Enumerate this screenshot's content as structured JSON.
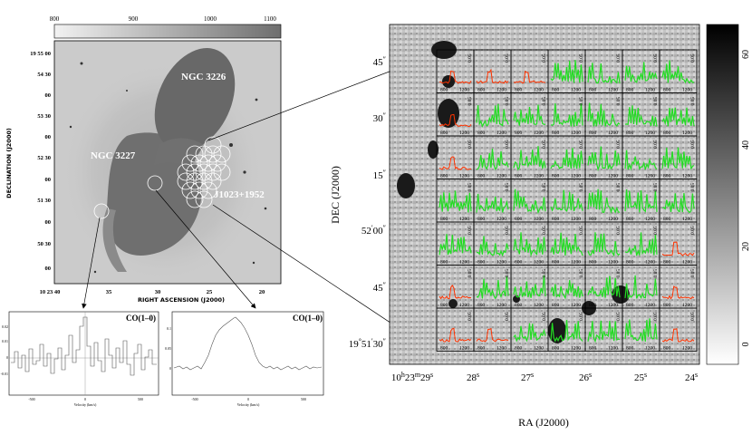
{
  "left_panel": {
    "colorbar": {
      "ticks": [
        "800",
        "900",
        "1000",
        "1100"
      ]
    },
    "galaxy_labels": {
      "ngc3226": "NGC 3226",
      "ngc3227": "NGC 3227",
      "j1023": "J1023+1952"
    },
    "dec_ticks": [
      "19 55 00",
      "54 30",
      "00",
      "53 30",
      "00",
      "52 30",
      "00",
      "51 30",
      "00",
      "50 30",
      "00"
    ],
    "ra_ticks": [
      "10 23 40",
      "35",
      "30",
      "25",
      "20"
    ],
    "xlabel": "RIGHT ASCENSION (J2000)",
    "ylabel": "DECLINATION (J2000)"
  },
  "spectra": {
    "left": {
      "title": "CO(1–0)",
      "y_ticks": [
        "0.02",
        "0.01",
        "0",
        "-0.01"
      ],
      "x_ticks": [
        "-500",
        "0",
        "500"
      ],
      "xlabel": "Velocity (km/s)"
    },
    "right": {
      "title": "CO(1–0)",
      "y_ticks": [
        "0.1",
        "0.05",
        "0"
      ],
      "x_ticks": [
        "-500",
        "0",
        "500"
      ],
      "xlabel": "Velocity (km/s)"
    }
  },
  "right_panel": {
    "dec_ticks": [
      {
        "deg": "",
        "min": "",
        "sec": "45",
        "unit": "″"
      },
      {
        "deg": "",
        "min": "",
        "sec": "30",
        "unit": "″"
      },
      {
        "deg": "",
        "min": "",
        "sec": "15",
        "unit": "″"
      },
      {
        "deg": "",
        "min": "52",
        "sec": "00",
        "unit": "″"
      },
      {
        "deg": "",
        "min": "",
        "sec": "45",
        "unit": "″"
      },
      {
        "deg": "19",
        "min": "51",
        "sec": "30",
        "unit": "″"
      }
    ],
    "ra_ticks": [
      {
        "h": "10",
        "m": "23",
        "s": "29"
      },
      {
        "h": "",
        "m": "",
        "s": "28"
      },
      {
        "h": "",
        "m": "",
        "s": "27"
      },
      {
        "h": "",
        "m": "",
        "s": "26"
      },
      {
        "h": "",
        "m": "",
        "s": "25"
      },
      {
        "h": "",
        "m": "",
        "s": "24"
      }
    ],
    "ylabel": "DEC (J2000)",
    "xlabel": "RA (J2000)",
    "cell_x_ticks": [
      "800",
      "1200"
    ],
    "cell_y_tick": "0.05",
    "colorbar_ticks": [
      "60",
      "40",
      "20",
      "0"
    ]
  }
}
